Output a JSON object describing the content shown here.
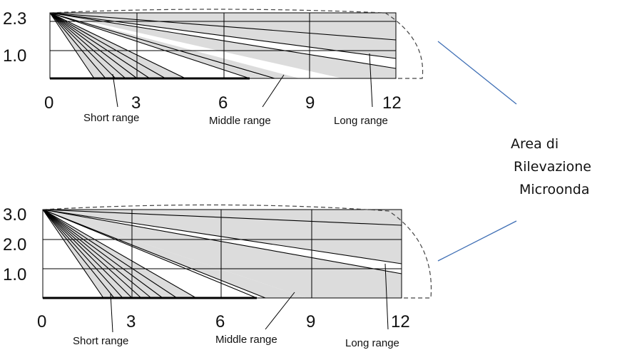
{
  "diagrams": [
    {
      "y_ticks": [
        "2.3",
        "1.0"
      ],
      "x_ticks": [
        "0",
        "3",
        "6",
        "9",
        "12"
      ],
      "labels": {
        "short": "Short range",
        "middle": "Middle range",
        "long": "Long range"
      }
    },
    {
      "y_ticks": [
        "3.0",
        "2.0",
        "1.0"
      ],
      "x_ticks": [
        "0",
        "3",
        "6",
        "9",
        "12"
      ],
      "labels": {
        "short": "Short range",
        "middle": "Middle range",
        "long": "Long range"
      }
    }
  ],
  "side_label": {
    "line1": "Area di",
    "line2": "Rilevazione",
    "line3": "Microonda"
  },
  "colors": {
    "fill": "#dcdcdc",
    "line": "#000000",
    "connector": "#3f6fb5",
    "outline": "#444444"
  }
}
